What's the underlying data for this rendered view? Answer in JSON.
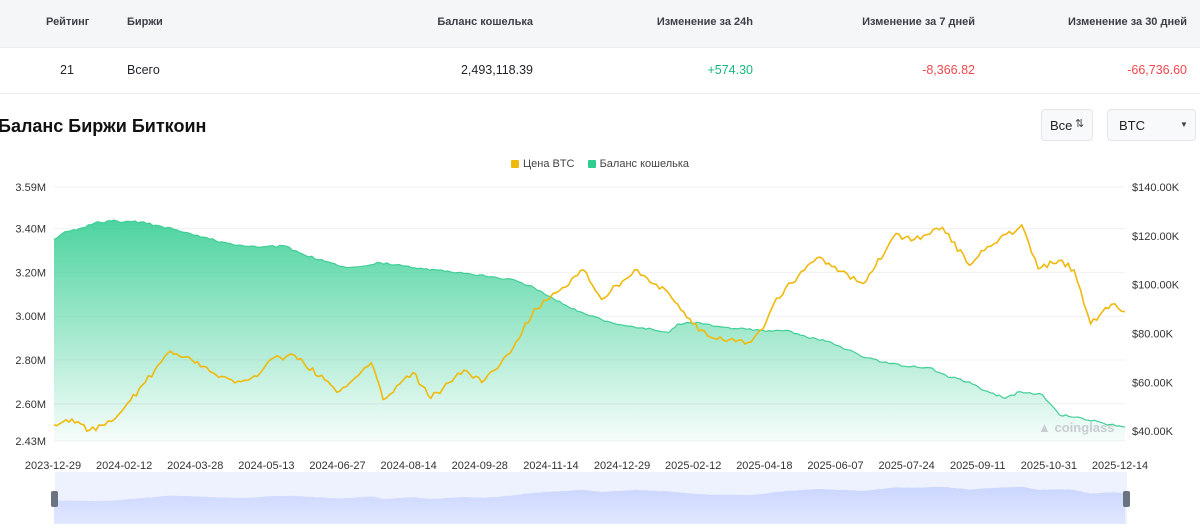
{
  "table": {
    "headers": {
      "rank": "Рейтинг",
      "exchange": "Биржи",
      "balance": "Баланс кошелька",
      "change_24h": "Изменение за 24h",
      "change_7d": "Изменение за 7 дней",
      "change_30d": "Изменение за 30 дней"
    },
    "row": {
      "rank": "21",
      "exchange": "Всего",
      "balance": "2,493,118.39",
      "change_24h": "+574.30",
      "change_7d": "-8,366.82",
      "change_30d": "-66,736.60"
    }
  },
  "section": {
    "title": "Баланс Биржи Биткоин",
    "range_select": "Все",
    "coin_select": "BTC"
  },
  "watermark": "coinglass",
  "colors": {
    "positive": "#16b979",
    "negative": "#f0464d",
    "price_line": "#f0b90b",
    "balance_area": "#2ecc8f",
    "slider": "#dfe6ff"
  },
  "chart_data": {
    "type": "line",
    "legend": [
      "Цена BTC",
      "Баланс кошелька"
    ],
    "legend_position": "top-center",
    "x_tick_labels": [
      "2023-12-29",
      "2024-02-12",
      "2024-03-28",
      "2024-05-13",
      "2024-06-27",
      "2024-08-14",
      "2024-09-28",
      "2024-11-14",
      "2024-12-29",
      "2025-02-12",
      "2025-04-18",
      "2025-06-07",
      "2025-07-24",
      "2025-09-11",
      "2025-10-31",
      "2025-12-14"
    ],
    "y_left_ticks": [
      "3.59M",
      "3.40M",
      "3.20M",
      "3.00M",
      "2.80M",
      "2.60M",
      "2.43M"
    ],
    "y_right_ticks": [
      "$140.00K",
      "$120.00K",
      "$100.00K",
      "$80.00K",
      "$60.00K",
      "$40.00K"
    ],
    "y_left_range": [
      2430000,
      3590000
    ],
    "y_right_range": [
      36000,
      140000
    ],
    "x_range": [
      "2023-12-29",
      "2025-12-14"
    ],
    "series": [
      {
        "name": "Баланс кошелька",
        "axis": "left",
        "type": "area",
        "points": [
          [
            "2023-12-29",
            3350000
          ],
          [
            "2024-01-05",
            3385000
          ],
          [
            "2024-01-15",
            3400000
          ],
          [
            "2024-01-25",
            3425000
          ],
          [
            "2024-02-05",
            3435000
          ],
          [
            "2024-02-25",
            3430000
          ],
          [
            "2024-03-10",
            3410000
          ],
          [
            "2024-03-28",
            3380000
          ],
          [
            "2024-04-15",
            3345000
          ],
          [
            "2024-05-01",
            3325000
          ],
          [
            "2024-05-13",
            3315000
          ],
          [
            "2024-06-01",
            3320000
          ],
          [
            "2024-06-10",
            3290000
          ],
          [
            "2024-06-27",
            3250000
          ],
          [
            "2024-07-10",
            3225000
          ],
          [
            "2024-07-25",
            3230000
          ],
          [
            "2024-08-01",
            3245000
          ],
          [
            "2024-08-14",
            3235000
          ],
          [
            "2024-09-01",
            3215000
          ],
          [
            "2024-09-15",
            3205000
          ],
          [
            "2024-09-28",
            3195000
          ],
          [
            "2024-10-15",
            3180000
          ],
          [
            "2024-11-01",
            3165000
          ],
          [
            "2024-11-14",
            3130000
          ],
          [
            "2024-11-25",
            3090000
          ],
          [
            "2024-12-05",
            3050000
          ],
          [
            "2024-12-15",
            3020000
          ],
          [
            "2024-12-29",
            2985000
          ],
          [
            "2025-01-15",
            2955000
          ],
          [
            "2025-02-01",
            2940000
          ],
          [
            "2025-02-12",
            2925000
          ],
          [
            "2025-02-18",
            2965000
          ],
          [
            "2025-03-05",
            2970000
          ],
          [
            "2025-03-20",
            2950000
          ],
          [
            "2025-04-05",
            2940000
          ],
          [
            "2025-04-18",
            2930000
          ],
          [
            "2025-05-01",
            2935000
          ],
          [
            "2025-05-15",
            2905000
          ],
          [
            "2025-05-30",
            2885000
          ],
          [
            "2025-06-07",
            2860000
          ],
          [
            "2025-06-20",
            2820000
          ],
          [
            "2025-07-05",
            2790000
          ],
          [
            "2025-07-24",
            2770000
          ],
          [
            "2025-08-05",
            2765000
          ],
          [
            "2025-08-20",
            2720000
          ],
          [
            "2025-09-01",
            2700000
          ],
          [
            "2025-09-11",
            2660000
          ],
          [
            "2025-09-25",
            2625000
          ],
          [
            "2025-10-05",
            2655000
          ],
          [
            "2025-10-20",
            2640000
          ],
          [
            "2025-10-31",
            2550000
          ],
          [
            "2025-11-15",
            2535000
          ],
          [
            "2025-11-30",
            2510000
          ],
          [
            "2025-12-14",
            2493000
          ]
        ]
      },
      {
        "name": "Цена BTC",
        "axis": "right",
        "type": "line",
        "points": [
          [
            "2023-12-29",
            42500
          ],
          [
            "2024-01-10",
            45000
          ],
          [
            "2024-01-22",
            40500
          ],
          [
            "2024-02-01",
            42500
          ],
          [
            "2024-02-12",
            48000
          ],
          [
            "2024-02-28",
            60000
          ],
          [
            "2024-03-14",
            72000
          ],
          [
            "2024-03-28",
            70500
          ],
          [
            "2024-04-13",
            64000
          ],
          [
            "2024-04-30",
            60500
          ],
          [
            "2024-05-13",
            62500
          ],
          [
            "2024-05-22",
            69500
          ],
          [
            "2024-06-07",
            71000
          ],
          [
            "2024-06-27",
            61000
          ],
          [
            "2024-07-05",
            56000
          ],
          [
            "2024-07-28",
            68000
          ],
          [
            "2024-08-05",
            53000
          ],
          [
            "2024-08-14",
            58500
          ],
          [
            "2024-08-25",
            64000
          ],
          [
            "2024-09-06",
            53500
          ],
          [
            "2024-09-28",
            65000
          ],
          [
            "2024-10-10",
            60000
          ],
          [
            "2024-10-29",
            72000
          ],
          [
            "2024-11-14",
            90000
          ],
          [
            "2024-12-05",
            99000
          ],
          [
            "2024-12-17",
            106000
          ],
          [
            "2024-12-29",
            94000
          ],
          [
            "2025-01-20",
            106000
          ],
          [
            "2025-02-12",
            96500
          ],
          [
            "2025-02-28",
            84000
          ],
          [
            "2025-03-10",
            79000
          ],
          [
            "2025-04-08",
            76500
          ],
          [
            "2025-04-18",
            84500
          ],
          [
            "2025-04-25",
            94500
          ],
          [
            "2025-05-22",
            111000
          ],
          [
            "2025-06-07",
            105500
          ],
          [
            "2025-06-22",
            100500
          ],
          [
            "2025-07-14",
            121000
          ],
          [
            "2025-07-24",
            118000
          ],
          [
            "2025-08-14",
            123500
          ],
          [
            "2025-09-01",
            108000
          ],
          [
            "2025-09-11",
            114000
          ],
          [
            "2025-10-06",
            124500
          ],
          [
            "2025-10-17",
            106500
          ],
          [
            "2025-10-31",
            110000
          ],
          [
            "2025-11-10",
            106000
          ],
          [
            "2025-11-21",
            84000
          ],
          [
            "2025-12-05",
            92000
          ],
          [
            "2025-12-14",
            89000
          ]
        ]
      }
    ]
  }
}
